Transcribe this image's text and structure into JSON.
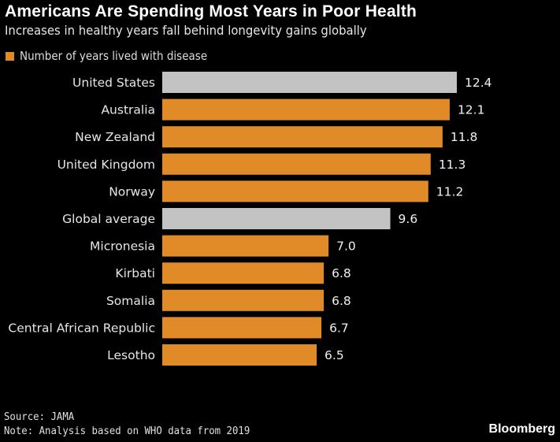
{
  "chart_data": {
    "type": "bar",
    "orientation": "horizontal",
    "title": "Americans Are Spending Most Years in Poor Health",
    "subtitle": "Increases in healthy years fall behind longevity gains globally",
    "legend": [
      {
        "label": "Number of years lived with disease",
        "color": "#e08a28"
      }
    ],
    "legend_position": "top-left",
    "categories": [
      "United States",
      "Australia",
      "New Zealand",
      "United Kingdom",
      "Norway",
      "Global average",
      "Micronesia",
      "Kirbati",
      "Somalia",
      "Central African Republic",
      "Lesotho"
    ],
    "values": [
      12.4,
      12.1,
      11.8,
      11.3,
      11.2,
      9.6,
      7.0,
      6.8,
      6.8,
      6.7,
      6.5
    ],
    "value_labels": [
      "12.4",
      "12.1",
      "11.8",
      "11.3",
      "11.2",
      "9.6",
      "7.0",
      "6.8",
      "6.8",
      "6.7",
      "6.5"
    ],
    "highlighted": [
      true,
      false,
      false,
      false,
      false,
      true,
      false,
      false,
      false,
      false,
      false
    ],
    "colors": {
      "default": "#e08a28",
      "highlight": "#c3c3c3"
    },
    "xlim": [
      0,
      12.4
    ],
    "grid": false,
    "xlabel": "",
    "ylabel": ""
  },
  "footer": {
    "source": "Source: JAMA",
    "note": "Note: Analysis based on WHO data from 2019",
    "brand": "Bloomberg"
  }
}
